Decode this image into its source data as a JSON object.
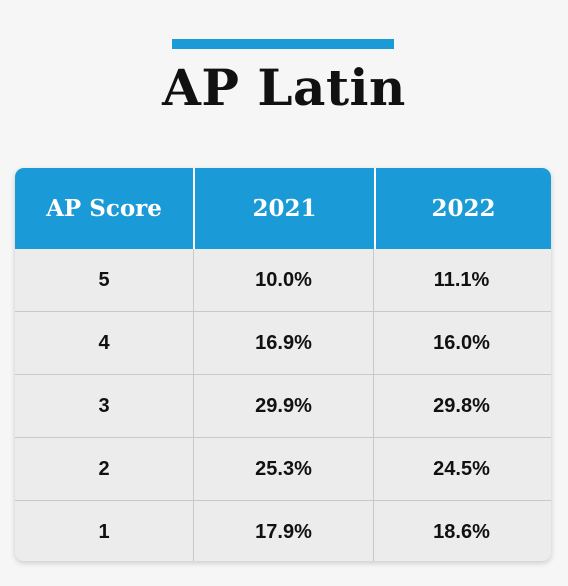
{
  "title": "AP Latin",
  "colors": {
    "accent": "#1a9ad6",
    "background": "#f6f6f6",
    "table_body": "#ececec"
  },
  "table": {
    "headers": [
      "AP Score",
      "2021",
      "2022"
    ],
    "rows": [
      [
        "5",
        "10.0%",
        "11.1%"
      ],
      [
        "4",
        "16.9%",
        "16.0%"
      ],
      [
        "3",
        "29.9%",
        "29.8%"
      ],
      [
        "2",
        "25.3%",
        "24.5%"
      ],
      [
        "1",
        "17.9%",
        "18.6%"
      ]
    ]
  }
}
